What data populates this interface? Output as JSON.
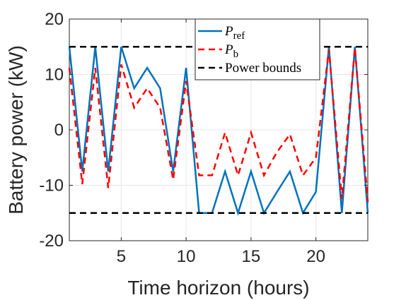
{
  "chart_data": {
    "type": "line",
    "title": "",
    "xlabel": "Time horizon (hours)",
    "ylabel": "Battery power (kW)",
    "xlim": [
      1,
      24
    ],
    "ylim": [
      -20,
      20
    ],
    "xticks": [
      5,
      10,
      15,
      20
    ],
    "yticks": [
      20,
      10,
      0,
      -10,
      -20
    ],
    "ytick_labels": [
      "20",
      "10",
      "0",
      "-10",
      "-20"
    ],
    "grid": true,
    "legend_position": "top-right",
    "x": [
      1,
      2,
      3,
      4,
      5,
      6,
      7,
      8,
      9,
      10,
      11,
      12,
      13,
      14,
      15,
      16,
      17,
      18,
      19,
      20,
      21,
      22,
      23,
      24
    ],
    "series": [
      {
        "name": "P",
        "subscript": "ref",
        "color": "#0072BD",
        "style": "solid",
        "values": [
          15,
          -7.5,
          15,
          -7.5,
          15,
          7.5,
          11.2,
          7.5,
          -7.5,
          11.2,
          -15,
          -15,
          -7.5,
          -15,
          -7.5,
          -15,
          -11.2,
          -7.5,
          -15,
          -11.2,
          15,
          -15,
          15,
          -15
        ]
      },
      {
        "name": "P",
        "subscript": "b",
        "color": "#FF0000",
        "style": "dashed",
        "values": [
          11.2,
          -9.8,
          11.2,
          -10.5,
          11.8,
          4,
          7.5,
          4,
          -9,
          8.8,
          -8.2,
          -8.2,
          -0.5,
          -8.2,
          -0.5,
          -8.2,
          -4,
          -0.8,
          -8.2,
          -5,
          14.5,
          -12.5,
          14.8,
          -13
        ]
      },
      {
        "name": "Power bounds",
        "color": "#000000",
        "style": "dashed",
        "values": [
          15,
          15,
          15,
          15,
          15,
          15,
          15,
          15,
          15,
          15,
          15,
          15,
          15,
          15,
          15,
          15,
          15,
          15,
          15,
          15,
          15,
          15,
          15,
          15
        ]
      },
      {
        "name": "",
        "color": "#000000",
        "style": "dashed",
        "values": [
          -15,
          -15,
          -15,
          -15,
          -15,
          -15,
          -15,
          -15,
          -15,
          -15,
          -15,
          -15,
          -15,
          -15,
          -15,
          -15,
          -15,
          -15,
          -15,
          -15,
          -15,
          -15,
          -15,
          -15
        ]
      }
    ],
    "legend": [
      {
        "label": "P",
        "sub": "ref",
        "color": "#0072BD",
        "style": "solid"
      },
      {
        "label": "P",
        "sub": "b",
        "color": "#FF0000",
        "style": "dashed"
      },
      {
        "label": "Power bounds",
        "sub": "",
        "color": "#000000",
        "style": "dashed"
      }
    ]
  }
}
